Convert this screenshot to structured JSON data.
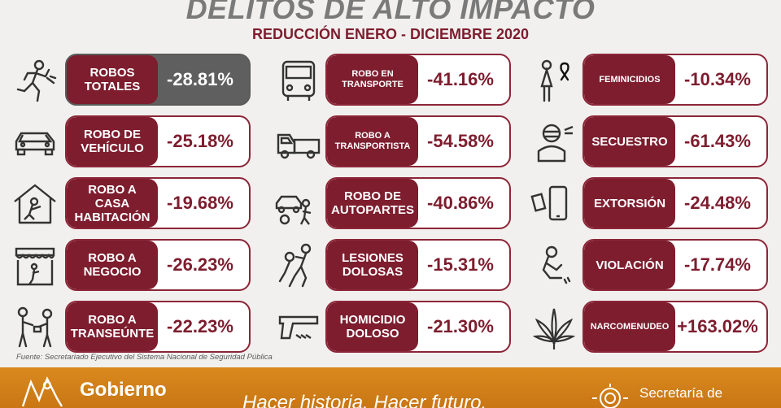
{
  "header": {
    "title": "DELITOS DE ALTO IMPACTO",
    "subtitle": "REDUCCIÓN ENERO - DICIEMBRE 2020"
  },
  "columns": [
    {
      "items": [
        {
          "label": "ROBOS TOTALES",
          "value": "-28.81%",
          "icon": "running-thief-icon"
        },
        {
          "label": "ROBO DE VEHÍCULO",
          "value": "-25.18%",
          "icon": "car-icon"
        },
        {
          "label": "ROBO A CASA HABITACIÓN",
          "value": "-19.68%",
          "icon": "house-burglar-icon"
        },
        {
          "label": "ROBO A NEGOCIO",
          "value": "-26.23%",
          "icon": "store-icon"
        },
        {
          "label": "ROBO A TRANSEÚNTE",
          "value": "-22.23%",
          "icon": "pedestrian-robbery-icon"
        }
      ]
    },
    {
      "items": [
        {
          "label": "ROBO EN TRANSPORTE",
          "value": "-41.16%",
          "icon": "bus-icon"
        },
        {
          "label": "ROBO A TRANSPORTISTA",
          "value": "-54.58%",
          "icon": "truck-icon"
        },
        {
          "label": "ROBO DE AUTOPARTES",
          "value": "-40.86%",
          "icon": "car-parts-thief-icon"
        },
        {
          "label": "LESIONES DOLOSAS",
          "value": "-15.31%",
          "icon": "assault-icon"
        },
        {
          "label": "HOMICIDIO DOLOSO",
          "value": "-21.30%",
          "icon": "gun-icon"
        }
      ]
    },
    {
      "items": [
        {
          "label": "FEMINICIDIOS",
          "value": "-10.34%",
          "icon": "woman-ribbon-icon"
        },
        {
          "label": "SECUESTRO",
          "value": "-61.43%",
          "icon": "kidnapped-person-icon"
        },
        {
          "label": "EXTORSIÓN",
          "value": "-24.48%",
          "icon": "phone-money-icon"
        },
        {
          "label": "VIOLACIÓN",
          "value": "-17.74%",
          "icon": "victim-icon"
        },
        {
          "label": "NARCOMENUDEO",
          "value": "+163.02%",
          "icon": "cannabis-leaf-icon"
        }
      ]
    }
  ],
  "source": "Fuente: Secretariado Ejecutivo del Sistema Nacional de Seguridad Pública",
  "footer": {
    "gobierno": "Gobierno",
    "slogan": "Hacer historia. Hacer futuro.",
    "secretaria": "Secretaría de"
  },
  "colors": {
    "accent": "#7d1d2e",
    "highlight_card": "#5f5f5f",
    "footer": "#d98a1e"
  }
}
